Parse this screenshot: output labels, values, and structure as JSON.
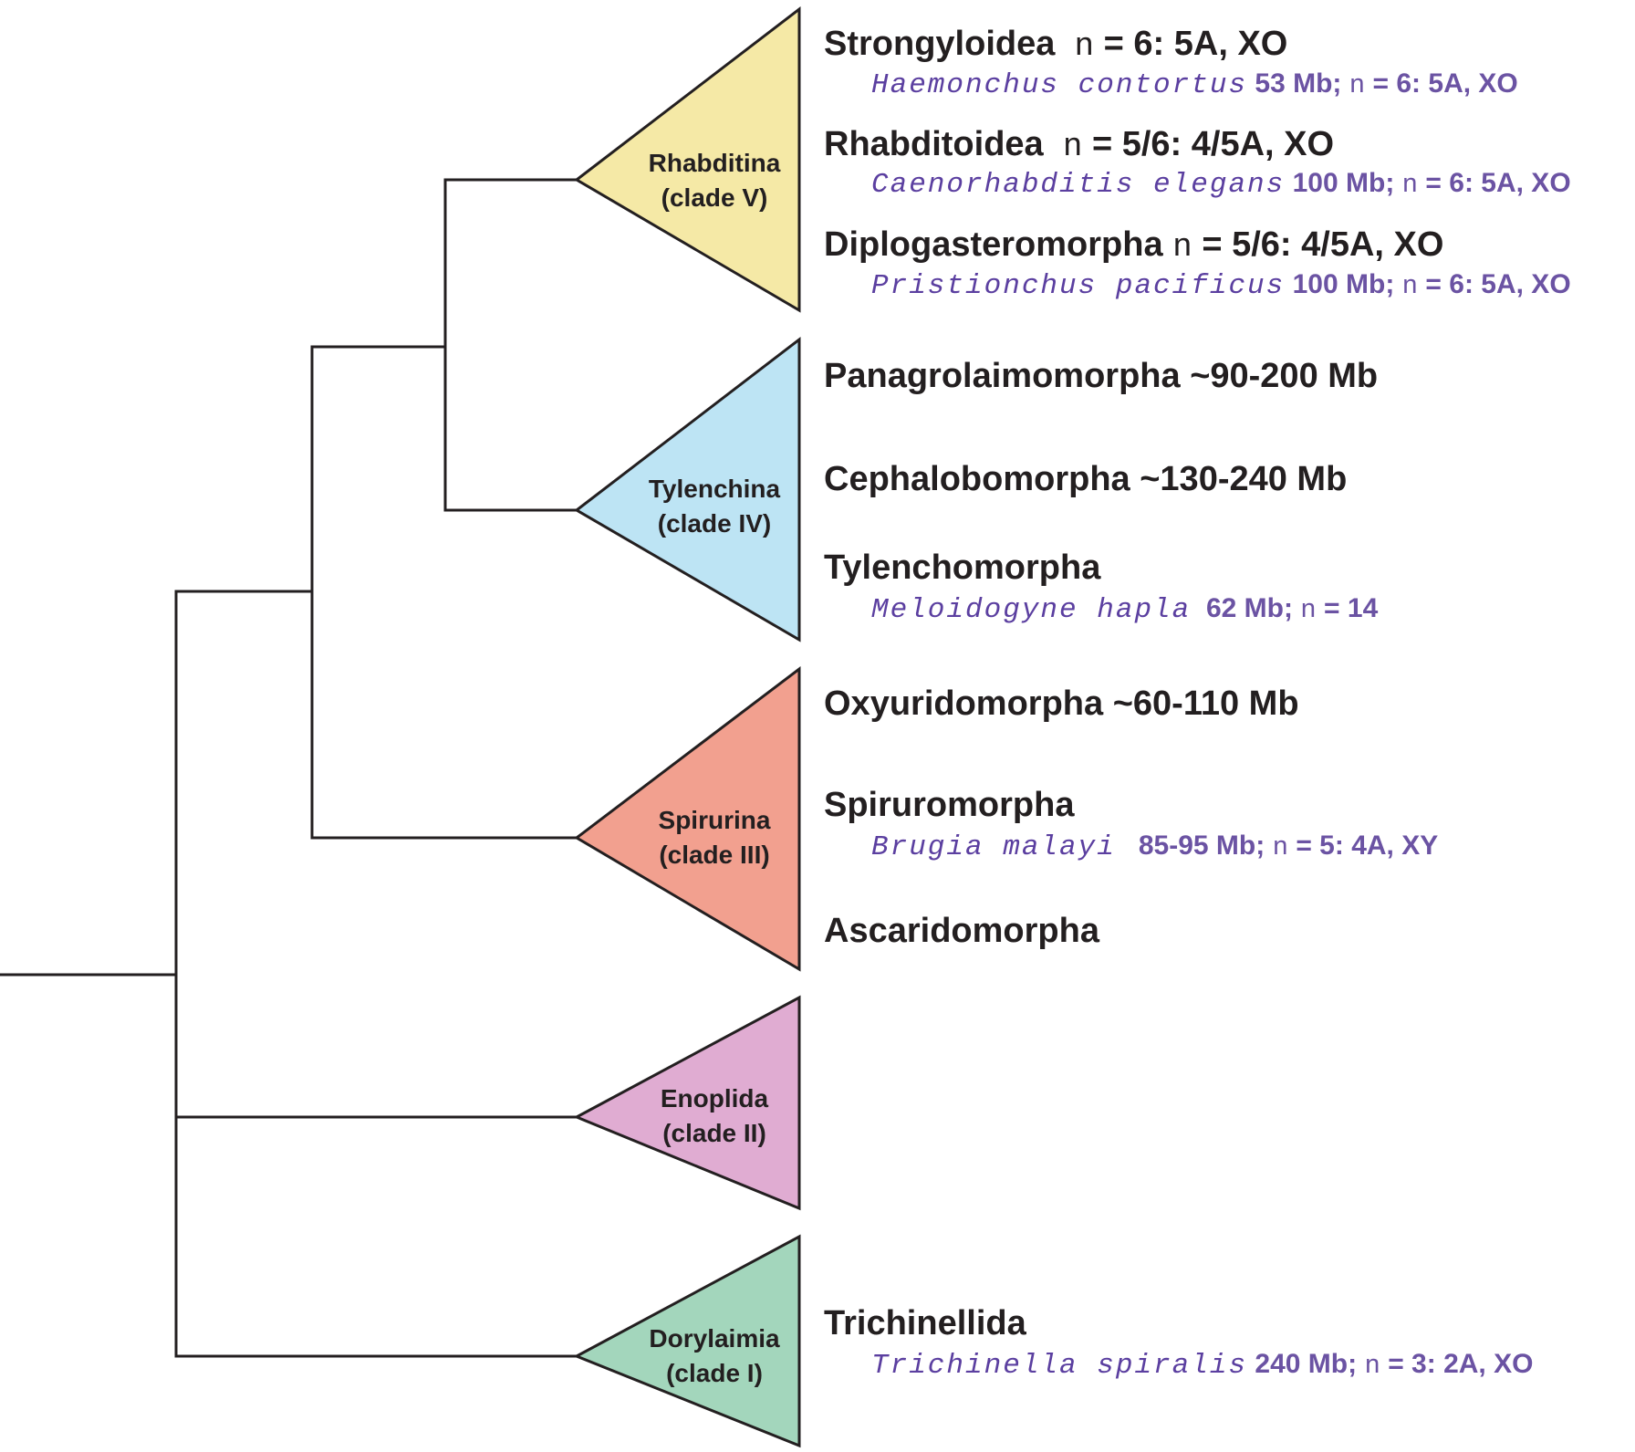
{
  "clades": [
    {
      "name": "Rhabditina",
      "clade": "(clade V)",
      "color": "#f5e9a6"
    },
    {
      "name": "Tylenchina",
      "clade": "(clade IV)",
      "color": "#bde4f4"
    },
    {
      "name": "Spirurina",
      "clade": "(clade III)",
      "color": "#f2a08f"
    },
    {
      "name": "Enoplida",
      "clade": "(clade II)",
      "color": "#e0acd2"
    },
    {
      "name": "Dorylaimia",
      "clade": "(clade I)",
      "color": "#a3d6bc"
    }
  ],
  "groups": {
    "strongyloidea": {
      "name": "Strongyloidea",
      "n": "n",
      "karyotype": "= 6: 5A, XO"
    },
    "haemonchus": {
      "species": "Haemonchus contortus",
      "size": "53 Mb;",
      "n": "n",
      "karyotype": "= 6: 5A, XO"
    },
    "rhabditoidea": {
      "name": "Rhabditoidea",
      "n": "n",
      "karyotype": "= 5/6: 4/5A, XO"
    },
    "caenorhabditis": {
      "species": "Caenorhabditis elegans",
      "size": "100 Mb;",
      "n": "n",
      "karyotype": "= 6: 5A, XO"
    },
    "diplogasteromorpha": {
      "name": "Diplogasteromorpha",
      "n": "n",
      "karyotype": "= 5/6: 4/5A, XO"
    },
    "pristionchus": {
      "species": "Pristionchus pacificus",
      "size": "100 Mb;",
      "n": "n",
      "karyotype": "= 6: 5A, XO"
    },
    "panagrolaimomorpha": {
      "name": "Panagrolaimomorpha ~90-200 Mb"
    },
    "cephalobomorpha": {
      "name": "Cephalobomorpha ~130-240 Mb"
    },
    "tylenchomorpha": {
      "name": "Tylenchomorpha"
    },
    "meloidogyne": {
      "species": "Meloidogyne hapla",
      "size": "62 Mb;",
      "n": "n",
      "karyotype": "= 14"
    },
    "oxyuridomorpha": {
      "name": "Oxyuridomorpha ~60-110 Mb"
    },
    "spiruromorpha": {
      "name": "Spiruromorpha"
    },
    "brugia": {
      "species": "Brugia malayi",
      "size": "85-95 Mb;",
      "n": "n",
      "karyotype": "= 5: 4A, XY"
    },
    "ascaridomorpha": {
      "name": "Ascaridomorpha"
    },
    "trichinellida": {
      "name": "Trichinellida"
    },
    "trichinella": {
      "species": "Trichinella spiralis",
      "size": "240 Mb;",
      "n": "n",
      "karyotype": "= 3: 2A, XO"
    }
  }
}
